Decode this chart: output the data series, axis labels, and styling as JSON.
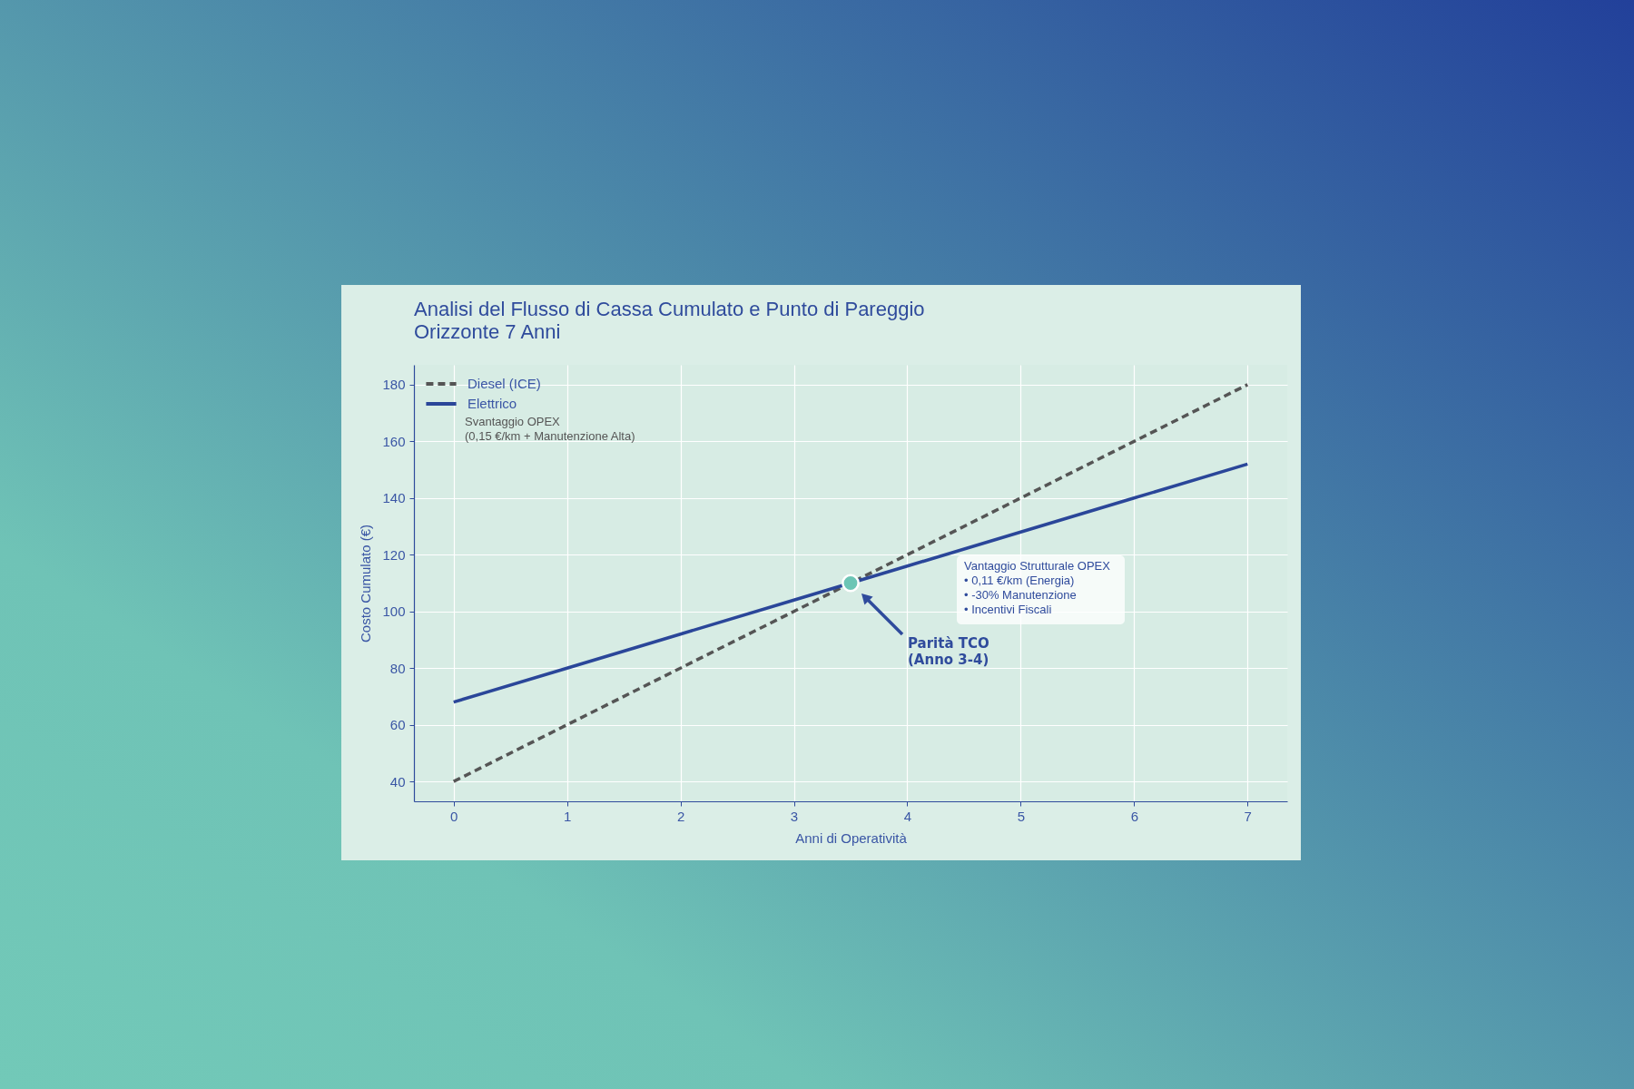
{
  "chart_data": {
    "type": "line",
    "title": "Analisi del Flusso di Cassa Cumulato e Punto di Pareggio\nOrizzonte 7 Anni",
    "xlabel": "Anni di Operatività",
    "ylabel": "Costo Cumulato (€)",
    "x": [
      0,
      1,
      2,
      3,
      4,
      5,
      6,
      7
    ],
    "series": [
      {
        "name": "Diesel (ICE)",
        "color": "#555555",
        "line_style": "dashed",
        "values": [
          40,
          60,
          80,
          100,
          120,
          140,
          160,
          180
        ]
      },
      {
        "name": "Elettrico",
        "color": "#2a4699",
        "line_style": "solid",
        "values": [
          68,
          80,
          92,
          104,
          116,
          128,
          140,
          152
        ]
      },
      {
        "type": "scatter",
        "x": [
          3.5
        ],
        "values": [
          110
        ],
        "color": "#6cc5b5",
        "marker": "circle"
      }
    ],
    "annotations": [
      "Svantaggio OPEX\n(0,15 €/km + Manutenzione Alta)",
      "Parità TCO\n(Anno 3-4)",
      "Vantaggio Strutturale OPEX\n• 0,11 €/km (Energia)\n• -30% Manutenzione\n• Incentivi Fiscali"
    ],
    "xlim": [
      -0.35,
      7.35
    ],
    "ylim": [
      33,
      187
    ],
    "xticks": [
      0,
      1,
      2,
      3,
      4,
      5,
      6,
      7
    ],
    "yticks": [
      40,
      60,
      80,
      100,
      120,
      140,
      160,
      180
    ],
    "grid": true,
    "legend": "top left"
  }
}
